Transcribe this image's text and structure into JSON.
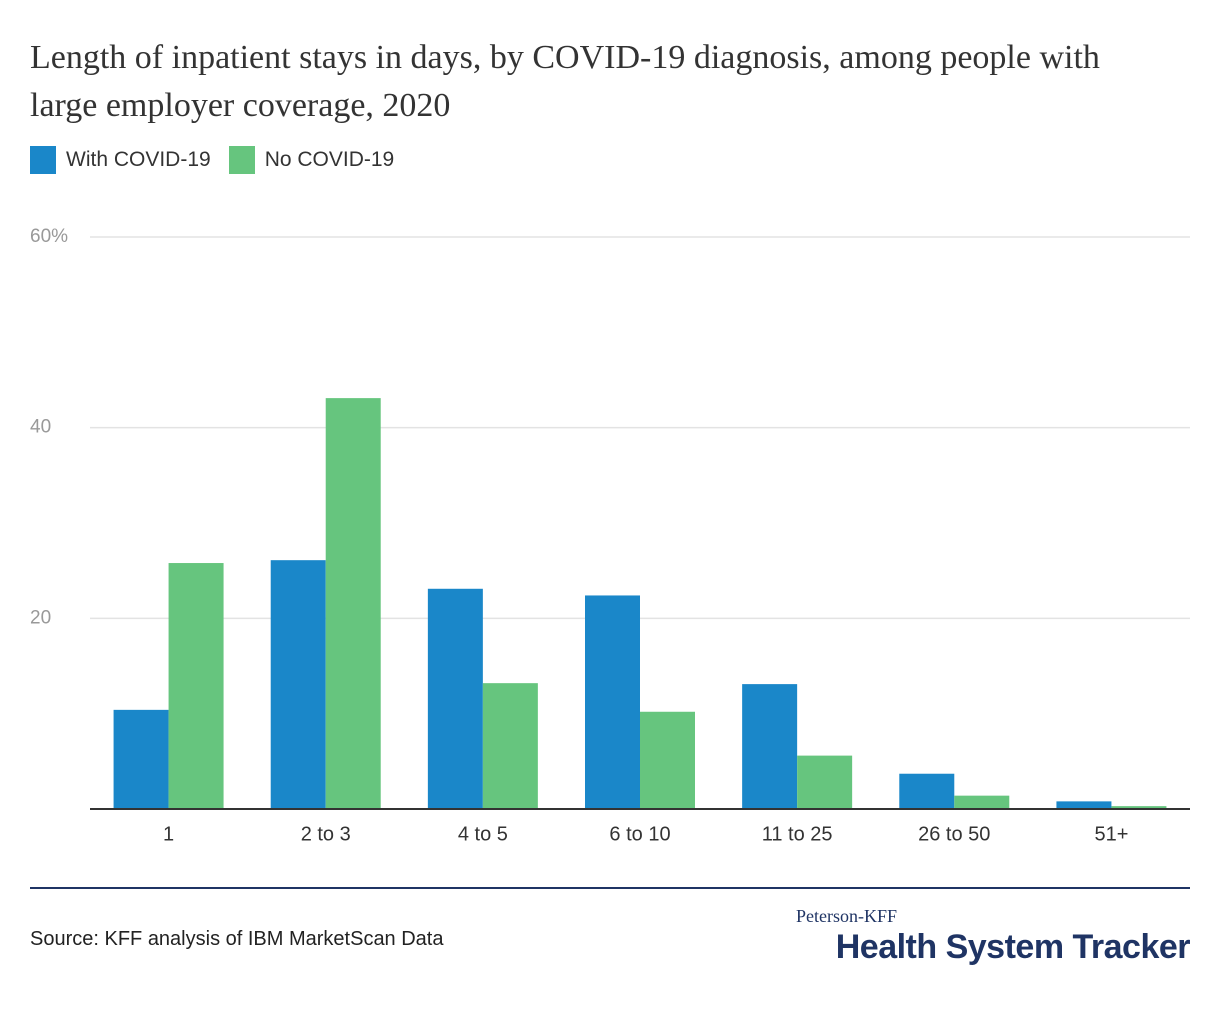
{
  "chart_data": {
    "type": "grouped-bar",
    "title": "Length of inpatient stays in days, by COVID-19 diagnosis, among people with large employer coverage, 2020",
    "categories": [
      "1",
      "2 to 3",
      "4 to 5",
      "6 to 10",
      "11 to 25",
      "26 to 50",
      "51+"
    ],
    "series": [
      {
        "name": "With COVID-19",
        "color": "#1a87c9",
        "values": [
          10.4,
          26.1,
          23.1,
          22.4,
          13.1,
          3.7,
          0.8
        ]
      },
      {
        "name": "No COVID-19",
        "color": "#66c57e",
        "values": [
          25.8,
          43.1,
          13.2,
          10.2,
          5.6,
          1.4,
          0.3
        ]
      }
    ],
    "ylim": [
      0,
      60
    ],
    "yticks": [
      20,
      40,
      {
        "value": 60,
        "label": "60%"
      }
    ],
    "grid": true
  },
  "footer": {
    "source": "Source: KFF analysis of IBM MarketScan Data",
    "logo_top": "Peterson-KFF",
    "logo_main": "Health System Tracker"
  }
}
